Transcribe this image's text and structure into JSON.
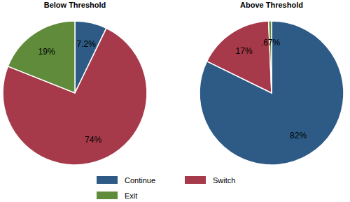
{
  "chart_data": [
    {
      "type": "pie",
      "title": "Below Threshold",
      "categories": [
        "Continue",
        "Switch",
        "Exit"
      ],
      "values": [
        7.2,
        74,
        19
      ],
      "value_labels": [
        "7.2%",
        "74%",
        "19%"
      ],
      "colors": [
        "#2e5b86",
        "#a63a4a",
        "#5f8b3b"
      ],
      "data_labels": true,
      "legend": "bottom"
    },
    {
      "type": "pie",
      "title": "Above Threshold",
      "categories": [
        "Continue",
        "Switch",
        "Exit"
      ],
      "values": [
        82,
        17,
        0.67
      ],
      "value_labels": [
        "82%",
        "17%",
        ".67%"
      ],
      "colors": [
        "#2e5b86",
        "#a63a4a",
        "#5f8b3b"
      ],
      "data_labels": true
    }
  ]
}
